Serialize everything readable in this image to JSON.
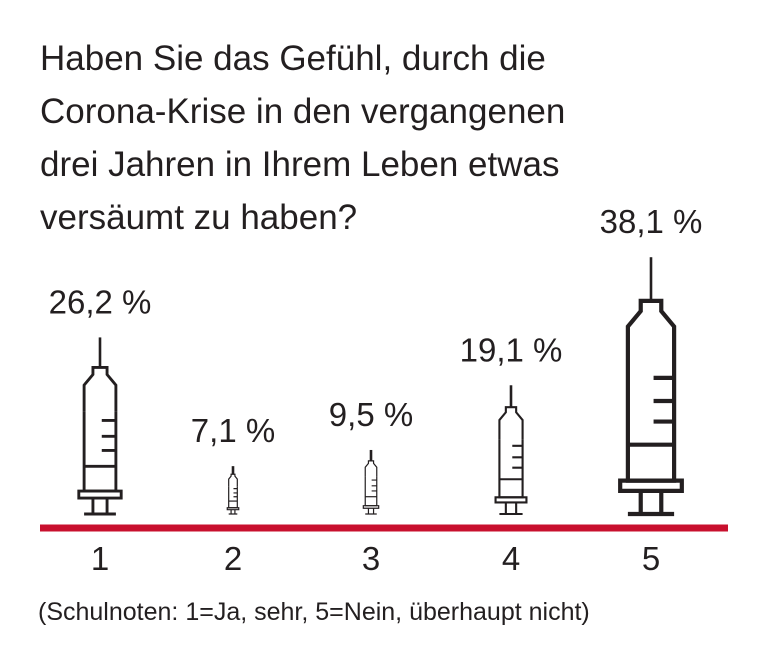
{
  "chart_data": {
    "type": "bar",
    "title_lines": [
      "Haben Sie das Gefühl, durch die",
      "Corona-Krise in den vergangenen",
      "drei Jahren in Ihrem Leben etwas",
      "versäumt zu haben?"
    ],
    "categories": [
      "1",
      "2",
      "3",
      "4",
      "5"
    ],
    "values": [
      26.2,
      7.1,
      9.5,
      19.1,
      38.1
    ],
    "value_labels": [
      "26,2 %",
      "7,1 %",
      "9,5 %",
      "19,1 %",
      "38,1 %"
    ],
    "unit": "%",
    "mark": "syringe-icon",
    "baseline_color": "#c8102e",
    "ink_color": "#231f20",
    "note": "(Schulnoten: 1=Ja, sehr, 5=Nein, überhaupt nicht)"
  }
}
